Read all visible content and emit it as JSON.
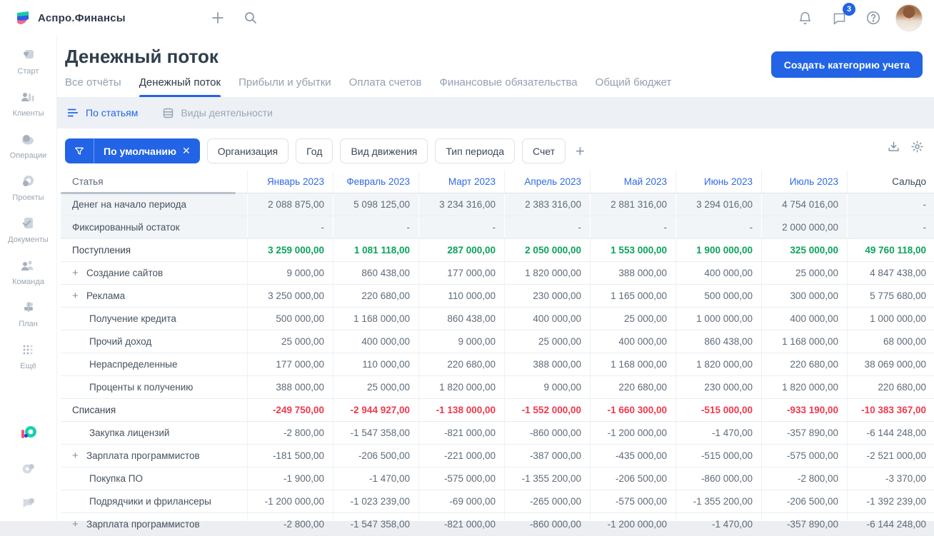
{
  "topbar": {
    "app_name": "Аспро.Финансы",
    "chat_badge": "3"
  },
  "sidebar": {
    "items": [
      {
        "label": "Старт",
        "icon": "start-icon"
      },
      {
        "label": "Клиенты",
        "icon": "clients-icon"
      },
      {
        "label": "Операции",
        "icon": "operations-icon"
      },
      {
        "label": "Проекты",
        "icon": "projects-icon"
      },
      {
        "label": "Документы",
        "icon": "documents-icon"
      },
      {
        "label": "Команда",
        "icon": "team-icon"
      },
      {
        "label": "План",
        "icon": "plan-icon"
      },
      {
        "label": "Ещё",
        "icon": "more-icon"
      }
    ]
  },
  "header": {
    "title": "Денежный поток",
    "create_button": "Создать категорию учета",
    "tabs": [
      {
        "label": "Все отчёты",
        "active": false
      },
      {
        "label": "Денежный поток",
        "active": true
      },
      {
        "label": "Прибыли и убытки",
        "active": false
      },
      {
        "label": "Оплата счетов",
        "active": false
      },
      {
        "label": "Финансовые обязательства",
        "active": false
      },
      {
        "label": "Общий бюджет",
        "active": false
      }
    ]
  },
  "view_switcher": {
    "options": [
      {
        "label": "По статьям",
        "active": true,
        "icon": "list-lines-icon"
      },
      {
        "label": "Виды деятельности",
        "active": false,
        "icon": "stack-icon"
      }
    ]
  },
  "filters": {
    "active_filter_label": "По умолчанию",
    "chips": [
      "Организация",
      "Год",
      "Вид движения",
      "Тип периода",
      "Счет"
    ]
  },
  "colors": {
    "accent_blue": "#2264e5",
    "positive_green": "#0aa35d",
    "negative_red": "#f0384e",
    "muted_row_bg": "#f2f5f8",
    "band_bg": "#edf1f6"
  },
  "table": {
    "columns": [
      "Статья",
      "Январь 2023",
      "Февраль 2023",
      "Март 2023",
      "Апрель 2023",
      "Май 2023",
      "Июнь 2023",
      "Июль 2023",
      "Сальдо"
    ],
    "rows": [
      {
        "label": "Денег на начало периода",
        "style": "muted",
        "expandable": false,
        "indent": false,
        "values": [
          "2 088 875,00",
          "5 098 125,00",
          "3 234 316,00",
          "2 383 316,00",
          "2 881 316,00",
          "3 294 016,00",
          "4 754 016,00"
        ],
        "saldo": "-"
      },
      {
        "label": "Фиксированный остаток",
        "style": "muted",
        "expandable": false,
        "indent": false,
        "values": [
          "-",
          "-",
          "-",
          "-",
          "-",
          "-",
          "2 000 000,00"
        ],
        "saldo": "-"
      },
      {
        "label": "Поступления",
        "style": "green",
        "expandable": false,
        "indent": false,
        "values": [
          "3 259 000,00",
          "1 081 118,00",
          "287 000,00",
          "2 050 000,00",
          "1 553 000,00",
          "1 900 000,00",
          "325 000,00"
        ],
        "saldo": "49 760 118,00"
      },
      {
        "label": "Создание сайтов",
        "style": "normal",
        "expandable": true,
        "indent": true,
        "values": [
          "9 000,00",
          "860 438,00",
          "177 000,00",
          "1 820 000,00",
          "388 000,00",
          "400 000,00",
          "25 000,00"
        ],
        "saldo": "4 847 438,00"
      },
      {
        "label": "Реклама",
        "style": "normal",
        "expandable": true,
        "indent": true,
        "values": [
          "3 250 000,00",
          "220 680,00",
          "110 000,00",
          "230 000,00",
          "1 165 000,00",
          "500 000,00",
          "300 000,00"
        ],
        "saldo": "5 775 680,00"
      },
      {
        "label": "Получение кредита",
        "style": "normal",
        "expandable": false,
        "indent": true,
        "values": [
          "500 000,00",
          "1 168 000,00",
          "860 438,00",
          "400 000,00",
          "25 000,00",
          "1 000 000,00",
          "400 000,00"
        ],
        "saldo": "1 000 000,00"
      },
      {
        "label": "Прочий доход",
        "style": "normal",
        "expandable": false,
        "indent": true,
        "values": [
          "25 000,00",
          "400 000,00",
          "9 000,00",
          "25 000,00",
          "400 000,00",
          "860 438,00",
          "1 168 000,00"
        ],
        "saldo": "68 000,00"
      },
      {
        "label": "Нераспределенные",
        "style": "normal",
        "expandable": false,
        "indent": true,
        "values": [
          "177 000,00",
          "110 000,00",
          "220 680,00",
          "388 000,00",
          "1 168 000,00",
          "1 820 000,00",
          "220 680,00"
        ],
        "saldo": "38 069 000,00"
      },
      {
        "label": "Проценты к получению",
        "style": "normal",
        "expandable": false,
        "indent": true,
        "values": [
          "388 000,00",
          "25 000,00",
          "1 820 000,00",
          "9 000,00",
          "220 680,00",
          "230 000,00",
          "1 820 000,00"
        ],
        "saldo": "220 680,00"
      },
      {
        "label": "Списания",
        "style": "red",
        "expandable": false,
        "indent": false,
        "values": [
          "-249 750,00",
          "-2 944 927,00",
          "-1 138 000,00",
          "-1 552 000,00",
          "-1 660 300,00",
          "-515 000,00",
          "-933 190,00"
        ],
        "saldo": "-10 383 367,00"
      },
      {
        "label": "Закупка лицензий",
        "style": "normal",
        "expandable": false,
        "indent": true,
        "values": [
          "-2 800,00",
          "-1 547 358,00",
          "-821 000,00",
          "-860 000,00",
          "-1 200 000,00",
          "-1 470,00",
          "-357 890,00"
        ],
        "saldo": "-6 144 248,00"
      },
      {
        "label": "Зарплата программистов",
        "style": "normal",
        "expandable": true,
        "indent": true,
        "values": [
          "-181 500,00",
          "-206 500,00",
          "-221 000,00",
          "-387 000,00",
          "-435 000,00",
          "-515 000,00",
          "-575 000,00"
        ],
        "saldo": "-2 521 000,00"
      },
      {
        "label": "Покупка ПО",
        "style": "normal",
        "expandable": false,
        "indent": true,
        "values": [
          "-1 900,00",
          "-1 470,00",
          "-575 000,00",
          "-1 355 200,00",
          "-206 500,00",
          "-860 000,00",
          "-2 800,00"
        ],
        "saldo": "-3 370,00"
      },
      {
        "label": "Подрядчики и фрилансеры",
        "style": "normal",
        "expandable": false,
        "indent": true,
        "values": [
          "-1 200 000,00",
          "-1 023 239,00",
          "-69 000,00",
          "-265 000,00",
          "-575 000,00",
          "-1 355 200,00",
          "-206 500,00"
        ],
        "saldo": "-1 392 239,00"
      },
      {
        "label": "Зарплата программистов",
        "style": "normal",
        "expandable": true,
        "indent": true,
        "values": [
          "-2 800,00",
          "-1 547 358,00",
          "-821 000,00",
          "-860 000,00",
          "-1 200 000,00",
          "-1 470,00",
          "-357 890,00"
        ],
        "saldo": "-6 144 248,00"
      }
    ]
  }
}
